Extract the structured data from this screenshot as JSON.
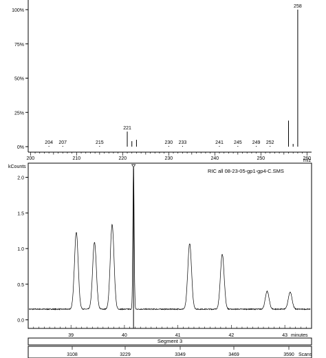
{
  "chart_data": [
    {
      "type": "bar",
      "y_unit": "%",
      "y_ticks": [
        "100%",
        "75%",
        "50%",
        "25%",
        "0%"
      ],
      "y_tick_values": [
        100,
        75,
        50,
        25,
        0
      ],
      "ylim": [
        0,
        100
      ],
      "x_ticks": [
        "200",
        "210",
        "220",
        "230",
        "240",
        "250",
        "260"
      ],
      "x_tick_values": [
        200,
        210,
        220,
        230,
        240,
        250,
        260
      ],
      "xlim": [
        199.5,
        261
      ],
      "xlabel": "m/z",
      "peaks": [
        {
          "mz": 204,
          "intensity": 0.5,
          "label": "204"
        },
        {
          "mz": 207,
          "intensity": 0.5,
          "label": "207"
        },
        {
          "mz": 215,
          "intensity": 0.5,
          "label": "215"
        },
        {
          "mz": 221,
          "intensity": 11,
          "label": "221"
        },
        {
          "mz": 222,
          "intensity": 4,
          "label": ""
        },
        {
          "mz": 223,
          "intensity": 5,
          "label": ""
        },
        {
          "mz": 230,
          "intensity": 0.5,
          "label": "230"
        },
        {
          "mz": 233,
          "intensity": 0.5,
          "label": "233"
        },
        {
          "mz": 241,
          "intensity": 0.5,
          "label": "241"
        },
        {
          "mz": 245,
          "intensity": 0.5,
          "label": "245"
        },
        {
          "mz": 249,
          "intensity": 0.5,
          "label": "249"
        },
        {
          "mz": 252,
          "intensity": 0.5,
          "label": "252"
        },
        {
          "mz": 256,
          "intensity": 19,
          "label": ""
        },
        {
          "mz": 257,
          "intensity": 2,
          "label": ""
        },
        {
          "mz": 258,
          "intensity": 100,
          "label": "258"
        }
      ]
    },
    {
      "type": "line",
      "title": "RIC all 08-23-05-gp1-gp4-C.SMS",
      "y_unit": "kCounts",
      "y_ticks": [
        "2.0",
        "1.5",
        "1.0",
        "0.5",
        "0.0"
      ],
      "y_tick_values": [
        2.0,
        1.5,
        1.0,
        0.5,
        0.0
      ],
      "ylim": [
        -0.12,
        2.15
      ],
      "x_ticks": [
        "39",
        "40",
        "41",
        "42",
        "43"
      ],
      "x_tick_values": [
        39,
        40,
        41,
        42,
        43
      ],
      "xlim": [
        38.2,
        43.5
      ],
      "xlabel": "minutes",
      "baseline": 0.15,
      "marker_time": 40.17,
      "peaks": [
        {
          "time": 39.1,
          "height": 1.23
        },
        {
          "time": 39.44,
          "height": 1.09
        },
        {
          "time": 39.77,
          "height": 1.34
        },
        {
          "time": 40.17,
          "height": 2.15
        },
        {
          "time": 41.22,
          "height": 1.07
        },
        {
          "time": 41.83,
          "height": 0.92
        },
        {
          "time": 42.67,
          "height": 0.4
        },
        {
          "time": 43.1,
          "height": 0.39
        }
      ],
      "segment_label": "Segment 3",
      "scan_ticks": [
        "3108",
        "3229",
        "3349",
        "3469",
        "3590"
      ],
      "scans_label": "Scans"
    }
  ]
}
